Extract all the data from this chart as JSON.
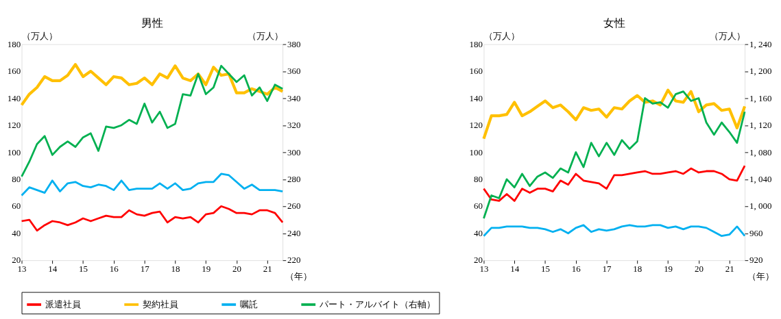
{
  "chart_data": [
    {
      "type": "line",
      "title": "男性",
      "ylabel": "（万人）",
      "y2label": "（万人）",
      "xlabel": "（年）",
      "legend": "bottom",
      "grid": false,
      "x": [
        13.0,
        13.25,
        13.5,
        13.75,
        14.0,
        14.25,
        14.5,
        14.75,
        15.0,
        15.25,
        15.5,
        15.75,
        16.0,
        16.25,
        16.5,
        16.75,
        17.0,
        17.25,
        17.5,
        17.75,
        18.0,
        18.25,
        18.5,
        18.75,
        19.0,
        19.25,
        19.5,
        19.75,
        20.0,
        20.25,
        20.5,
        20.75,
        21.0,
        21.25,
        21.5
      ],
      "xlim": [
        13,
        21.5
      ],
      "xticks": [
        13,
        14,
        15,
        16,
        17,
        18,
        19,
        20,
        21
      ],
      "ylim": [
        20,
        180
      ],
      "yticks": [
        20,
        40,
        60,
        80,
        100,
        120,
        140,
        160,
        180
      ],
      "y2lim": [
        220,
        380
      ],
      "y2ticks": [
        220,
        240,
        260,
        280,
        300,
        320,
        340,
        360,
        380
      ],
      "series": [
        {
          "name": "派遣社員",
          "color": "#ff0000",
          "values": [
            49,
            50,
            42,
            46,
            49,
            48,
            46,
            48,
            51,
            49,
            51,
            53,
            52,
            52,
            57,
            54,
            53,
            55,
            56,
            48,
            52,
            51,
            52,
            48,
            54,
            55,
            60,
            58,
            55,
            55,
            54,
            57,
            57,
            55,
            48
          ]
        },
        {
          "name": "契約社員",
          "color": "#ffc000",
          "values": [
            135,
            143,
            148,
            156,
            153,
            153,
            157,
            165,
            156,
            160,
            155,
            150,
            156,
            155,
            150,
            151,
            155,
            150,
            158,
            155,
            164,
            155,
            153,
            158,
            150,
            163,
            157,
            158,
            144,
            144,
            147,
            145,
            143,
            148,
            145
          ]
        },
        {
          "name": "嘱託",
          "color": "#00b0f0",
          "values": [
            68,
            74,
            72,
            70,
            79,
            71,
            77,
            78,
            75,
            74,
            76,
            75,
            72,
            79,
            72,
            73,
            73,
            73,
            77,
            73,
            77,
            72,
            73,
            77,
            78,
            78,
            84,
            83,
            78,
            73,
            76,
            72,
            72,
            72,
            71
          ]
        },
        {
          "name": "パート・アルバイト（右軸）",
          "color": "#00b050",
          "axis": "y2",
          "values": [
            282,
            293,
            306,
            312,
            298,
            304,
            308,
            304,
            311,
            314,
            301,
            319,
            318,
            320,
            324,
            321,
            336,
            322,
            330,
            318,
            321,
            343,
            342,
            358,
            343,
            348,
            364,
            358,
            352,
            357,
            342,
            348,
            338,
            350,
            347
          ]
        }
      ]
    },
    {
      "type": "line",
      "title": "女性",
      "ylabel": "（万人）",
      "y2label": "（万人）",
      "xlabel": "（年）",
      "grid": false,
      "x": [
        13.0,
        13.25,
        13.5,
        13.75,
        14.0,
        14.25,
        14.5,
        14.75,
        15.0,
        15.25,
        15.5,
        15.75,
        16.0,
        16.25,
        16.5,
        16.75,
        17.0,
        17.25,
        17.5,
        17.75,
        18.0,
        18.25,
        18.5,
        18.75,
        19.0,
        19.25,
        19.5,
        19.75,
        20.0,
        20.25,
        20.5,
        20.75,
        21.0,
        21.25,
        21.5
      ],
      "xlim": [
        13,
        21.5
      ],
      "xticks": [
        13,
        14,
        15,
        16,
        17,
        18,
        19,
        20,
        21
      ],
      "ylim": [
        20,
        180
      ],
      "yticks": [
        20,
        40,
        60,
        80,
        100,
        120,
        140,
        160,
        180
      ],
      "y2lim": [
        920,
        1240
      ],
      "y2ticks": [
        {
          "value": 920,
          "label": "920"
        },
        {
          "value": 960,
          "label": "960"
        },
        {
          "value": 1000,
          "label": "1, 000"
        },
        {
          "value": 1040,
          "label": "1, 040"
        },
        {
          "value": 1080,
          "label": "1, 080"
        },
        {
          "value": 1120,
          "label": "1, 120"
        },
        {
          "value": 1160,
          "label": "1, 160"
        },
        {
          "value": 1200,
          "label": "1, 200"
        },
        {
          "value": 1240,
          "label": "1, 240"
        }
      ],
      "series": [
        {
          "color": "#ff0000",
          "values": [
            73,
            65,
            64,
            69,
            64,
            73,
            70,
            73,
            73,
            71,
            79,
            76,
            84,
            79,
            78,
            77,
            73,
            83,
            83,
            84,
            85,
            86,
            84,
            84,
            85,
            86,
            84,
            88,
            85,
            86,
            86,
            84,
            80,
            79,
            90
          ]
        },
        {
          "color": "#ffc000",
          "values": [
            110,
            127,
            127,
            128,
            137,
            127,
            130,
            134,
            138,
            133,
            135,
            130,
            124,
            133,
            131,
            132,
            126,
            133,
            132,
            138,
            142,
            137,
            138,
            135,
            146,
            138,
            137,
            145,
            130,
            135,
            136,
            131,
            132,
            118,
            134
          ]
        },
        {
          "color": "#00b0f0",
          "values": [
            38,
            44,
            44,
            45,
            45,
            45,
            44,
            44,
            43,
            41,
            43,
            40,
            44,
            46,
            41,
            43,
            42,
            43,
            45,
            46,
            45,
            45,
            46,
            46,
            44,
            45,
            43,
            45,
            45,
            44,
            41,
            38,
            39,
            45,
            38
          ]
        },
        {
          "color": "#00b050",
          "axis": "y2",
          "values": [
            982,
            1016,
            1012,
            1040,
            1028,
            1048,
            1030,
            1044,
            1050,
            1042,
            1056,
            1050,
            1080,
            1058,
            1094,
            1074,
            1094,
            1076,
            1098,
            1085,
            1096,
            1160,
            1152,
            1154,
            1146,
            1166,
            1170,
            1156,
            1160,
            1124,
            1106,
            1124,
            1110,
            1094,
            1140
          ]
        }
      ]
    }
  ]
}
